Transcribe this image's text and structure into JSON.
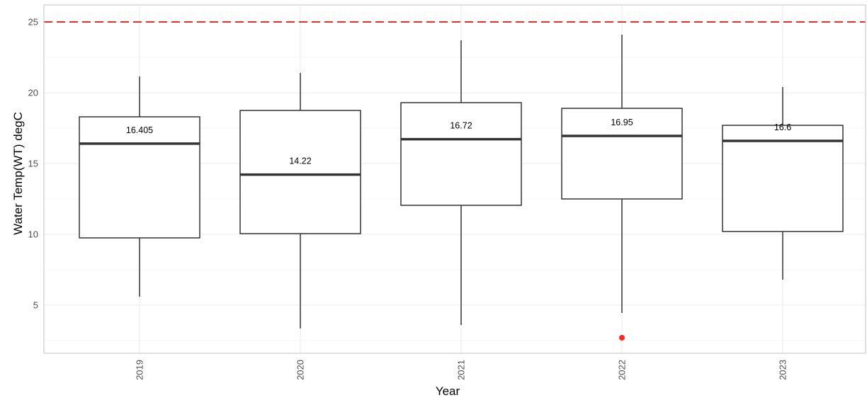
{
  "chart_data": {
    "type": "boxplot",
    "xlabel": "Year",
    "ylabel": "Water Temp(WT) degC",
    "ylim": [
      1.6,
      26.2
    ],
    "yticks": [
      5,
      10,
      15,
      20,
      25
    ],
    "categories": [
      "2019",
      "2020",
      "2021",
      "2022",
      "2023"
    ],
    "boxes": [
      {
        "category": "2019",
        "whisker_low": 5.6,
        "q1": 9.75,
        "median": 16.405,
        "q3": 18.3,
        "whisker_high": 21.15,
        "median_label": "16.405"
      },
      {
        "category": "2020",
        "whisker_low": 3.35,
        "q1": 10.05,
        "median": 14.22,
        "q3": 18.75,
        "whisker_high": 21.4,
        "median_label": "14.22"
      },
      {
        "category": "2021",
        "whisker_low": 3.6,
        "q1": 12.05,
        "median": 16.72,
        "q3": 19.3,
        "whisker_high": 23.7,
        "median_label": "16.72"
      },
      {
        "category": "2022",
        "whisker_low": 4.45,
        "q1": 12.5,
        "median": 16.95,
        "q3": 18.9,
        "whisker_high": 24.1,
        "median_label": "16.95"
      },
      {
        "category": "2023",
        "whisker_low": 6.8,
        "q1": 10.2,
        "median": 16.6,
        "q3": 17.7,
        "whisker_high": 20.4,
        "median_label": "16.6"
      }
    ],
    "outliers": [
      {
        "category": "2022",
        "value": 2.7
      }
    ],
    "reference_line": {
      "value": 25,
      "style": "dashed"
    },
    "grid": true,
    "legend": "none",
    "colors": {
      "box_stroke": "#333333",
      "outlier": "#ff2a1a",
      "reference_line": "#e8302a",
      "grid": "#ebebeb",
      "panel_border": "#cccccc"
    }
  }
}
